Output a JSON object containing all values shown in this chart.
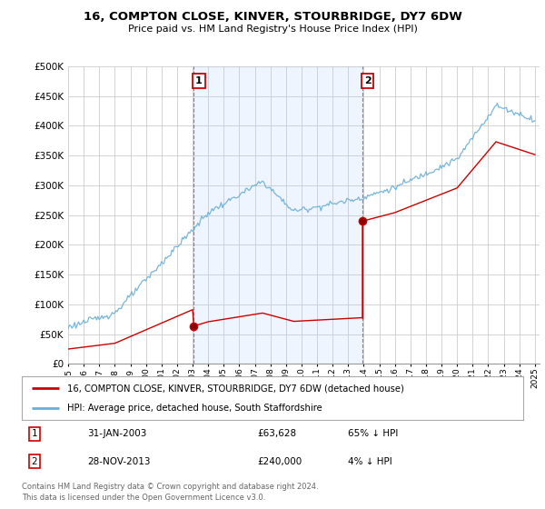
{
  "title": "16, COMPTON CLOSE, KINVER, STOURBRIDGE, DY7 6DW",
  "subtitle": "Price paid vs. HM Land Registry's House Price Index (HPI)",
  "legend_line1": "16, COMPTON CLOSE, KINVER, STOURBRIDGE, DY7 6DW (detached house)",
  "legend_line2": "HPI: Average price, detached house, South Staffordshire",
  "footer1": "Contains HM Land Registry data © Crown copyright and database right 2024.",
  "footer2": "This data is licensed under the Open Government Licence v3.0.",
  "annotation1_date": "31-JAN-2003",
  "annotation1_price": "£63,628",
  "annotation1_hpi": "65% ↓ HPI",
  "annotation2_date": "28-NOV-2013",
  "annotation2_price": "£240,000",
  "annotation2_hpi": "4% ↓ HPI",
  "sale1_year": 2003.08,
  "sale1_price": 63628,
  "sale2_year": 2013.92,
  "sale2_price": 240000,
  "prev_sale_price": 25000,
  "prev_sale_year": 1995.0,
  "hpi_color": "#6baed6",
  "price_color": "#cc0000",
  "vline_color": "#cc0000",
  "shade_color": "#ddeeff",
  "grid_color": "#cccccc",
  "background_color": "#ffffff",
  "ylim_max": 500000,
  "xlim_start": 1995.5,
  "xlim_end": 2025.3
}
